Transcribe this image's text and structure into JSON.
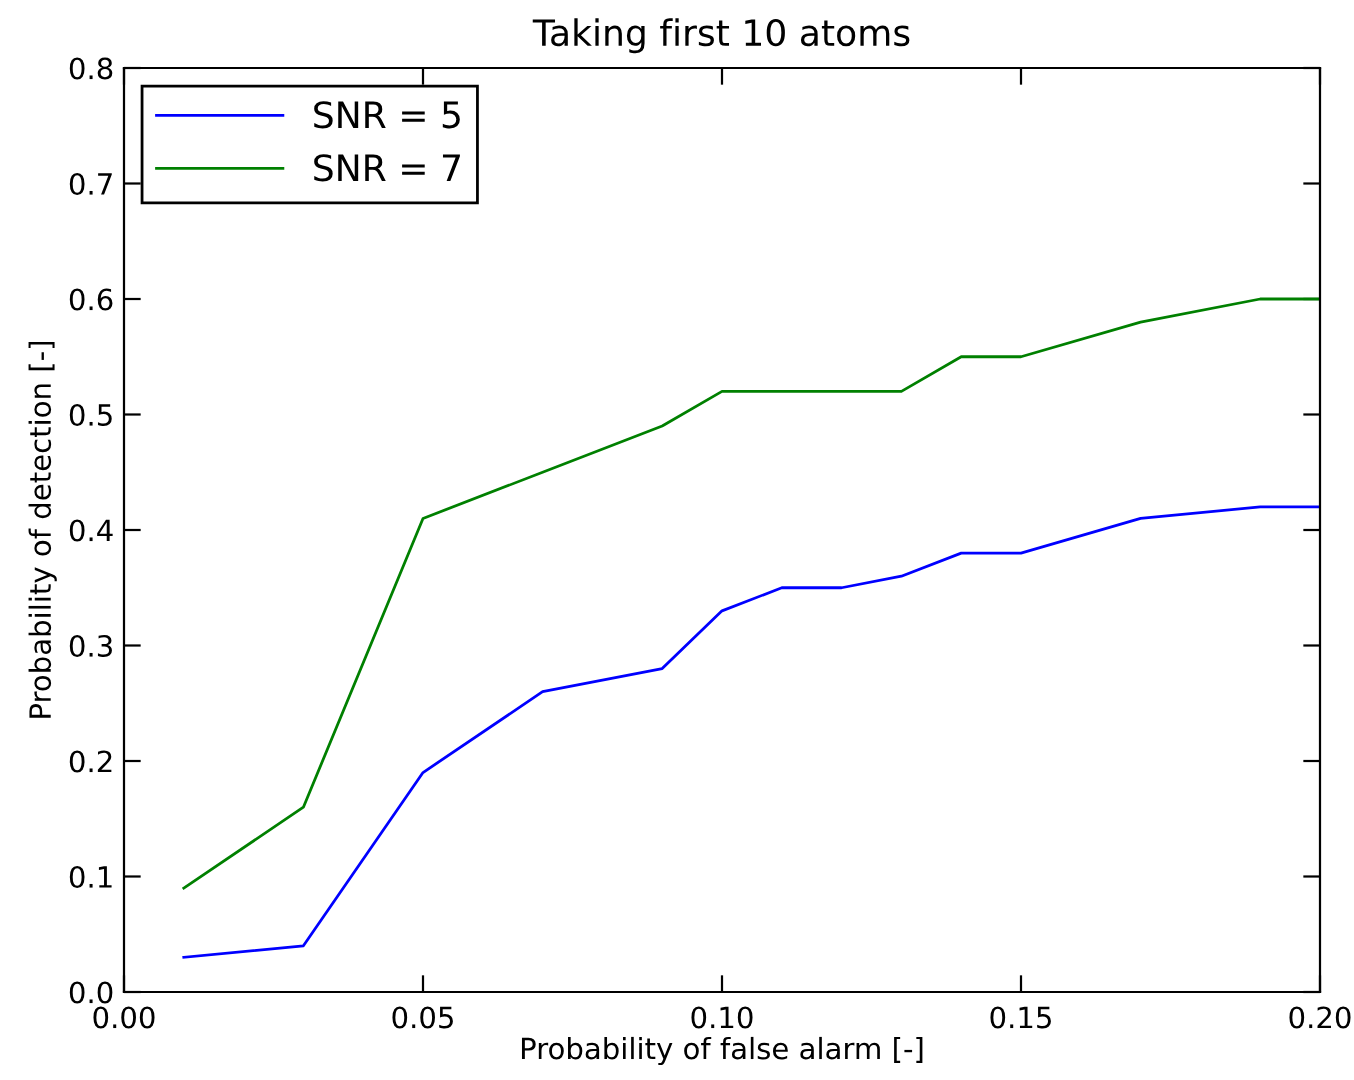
{
  "chart_data": {
    "type": "line",
    "title": "Taking first 10 atoms",
    "xlabel": "Probability of false alarm [-]",
    "ylabel": "Probability of detection [-]",
    "x": [
      0.01,
      0.03,
      0.05,
      0.07,
      0.09,
      0.1,
      0.11,
      0.12,
      0.13,
      0.14,
      0.15,
      0.17,
      0.19,
      0.2
    ],
    "series": [
      {
        "name": "SNR = 5",
        "color": "#0000ff",
        "values": [
          0.03,
          0.04,
          0.19,
          0.26,
          0.28,
          0.33,
          0.35,
          0.35,
          0.36,
          0.38,
          0.38,
          0.41,
          0.42,
          0.42
        ]
      },
      {
        "name": "SNR = 7",
        "color": "#008000",
        "values": [
          0.09,
          0.16,
          0.41,
          0.45,
          0.49,
          0.52,
          0.52,
          0.52,
          0.52,
          0.55,
          0.55,
          0.58,
          0.6,
          0.6
        ]
      }
    ],
    "xlim": [
      0.0,
      0.2
    ],
    "ylim": [
      0.0,
      0.8
    ],
    "xticks": [
      {
        "value": 0.0,
        "label": "0.00"
      },
      0.05,
      {
        "value": 0.1,
        "label": "0.10"
      },
      0.15,
      {
        "value": 0.2,
        "label": "0.20"
      }
    ],
    "yticks": [
      {
        "value": 0.0,
        "label": "0.0"
      },
      0.1,
      0.2,
      0.3,
      0.4,
      0.5,
      0.6,
      0.7,
      0.8
    ],
    "legend": "top left",
    "grid": false,
    "marker": "none",
    "line_style": "solid"
  }
}
